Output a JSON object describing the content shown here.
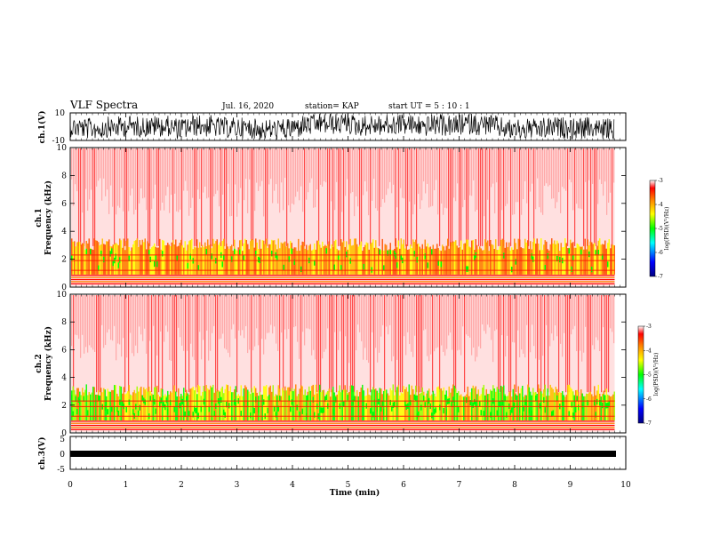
{
  "header": {
    "title": "VLF Spectra",
    "date": "Jul. 16, 2020",
    "station": "station= KAP",
    "start": "start  UT =   5 : 10 : 1"
  },
  "chart_data": [
    {
      "type": "line",
      "ylabel": "ch.1(V)",
      "ylim": [
        -10,
        10
      ],
      "y_ticks": [
        "10",
        "-10"
      ],
      "x_extent_min": [
        0,
        9.8
      ]
    },
    {
      "type": "heatmap",
      "ylabel_channel": "ch.1",
      "ylabel": "Frequency  (kHz)",
      "ylim": [
        0,
        10
      ],
      "y_ticks": [
        "0",
        "2",
        "4",
        "6",
        "8",
        "10"
      ],
      "colorbar": {
        "label": "log(PSD)(V²/Hz)",
        "range": [
          -7,
          -3
        ],
        "ticks": [
          "-3",
          "-4",
          "-5",
          "-6",
          "-7"
        ]
      },
      "bands": [
        {
          "from_khz": 0,
          "to_khz": 0.9,
          "level": "orange-red banded"
        },
        {
          "from_khz": 0.9,
          "to_khz": 3.0,
          "level": "yellow-orange with green"
        },
        {
          "from_khz": 3.0,
          "to_khz": 10,
          "level": "red speckled"
        }
      ]
    },
    {
      "type": "heatmap",
      "ylabel_channel": "ch.2",
      "ylabel": "Frequency  (kHz)",
      "ylim": [
        0,
        10
      ],
      "y_ticks": [
        "0",
        "2",
        "4",
        "6",
        "8",
        "10"
      ],
      "colorbar": {
        "label": "log(PSD)(V²/Hz)",
        "range": [
          -7,
          -3
        ],
        "ticks": [
          "-3",
          "-4",
          "-5",
          "-6",
          "-7"
        ]
      },
      "bands": [
        {
          "from_khz": 0,
          "to_khz": 0.9,
          "level": "orange-red banded"
        },
        {
          "from_khz": 0.9,
          "to_khz": 3.0,
          "level": "green-yellow"
        },
        {
          "from_khz": 3.0,
          "to_khz": 10,
          "level": "red speckled"
        }
      ]
    },
    {
      "type": "line",
      "ylabel": "ch.3(V)",
      "ylim": [
        -5,
        5
      ],
      "y_ticks": [
        "5",
        "0",
        "-5"
      ],
      "x_extent_min": [
        0,
        9.8
      ]
    }
  ],
  "xaxis": {
    "label": "Time  (min)",
    "range": [
      0,
      10
    ],
    "ticks": [
      "0",
      "1",
      "2",
      "3",
      "4",
      "5",
      "6",
      "7",
      "8",
      "9",
      "10"
    ]
  },
  "colors": {
    "high": "#ff0000",
    "mid_high": "#ff8000",
    "mid": "#ffff00",
    "mid_low": "#00ff00",
    "low": "#0000ff",
    "lowest": "#000080"
  }
}
